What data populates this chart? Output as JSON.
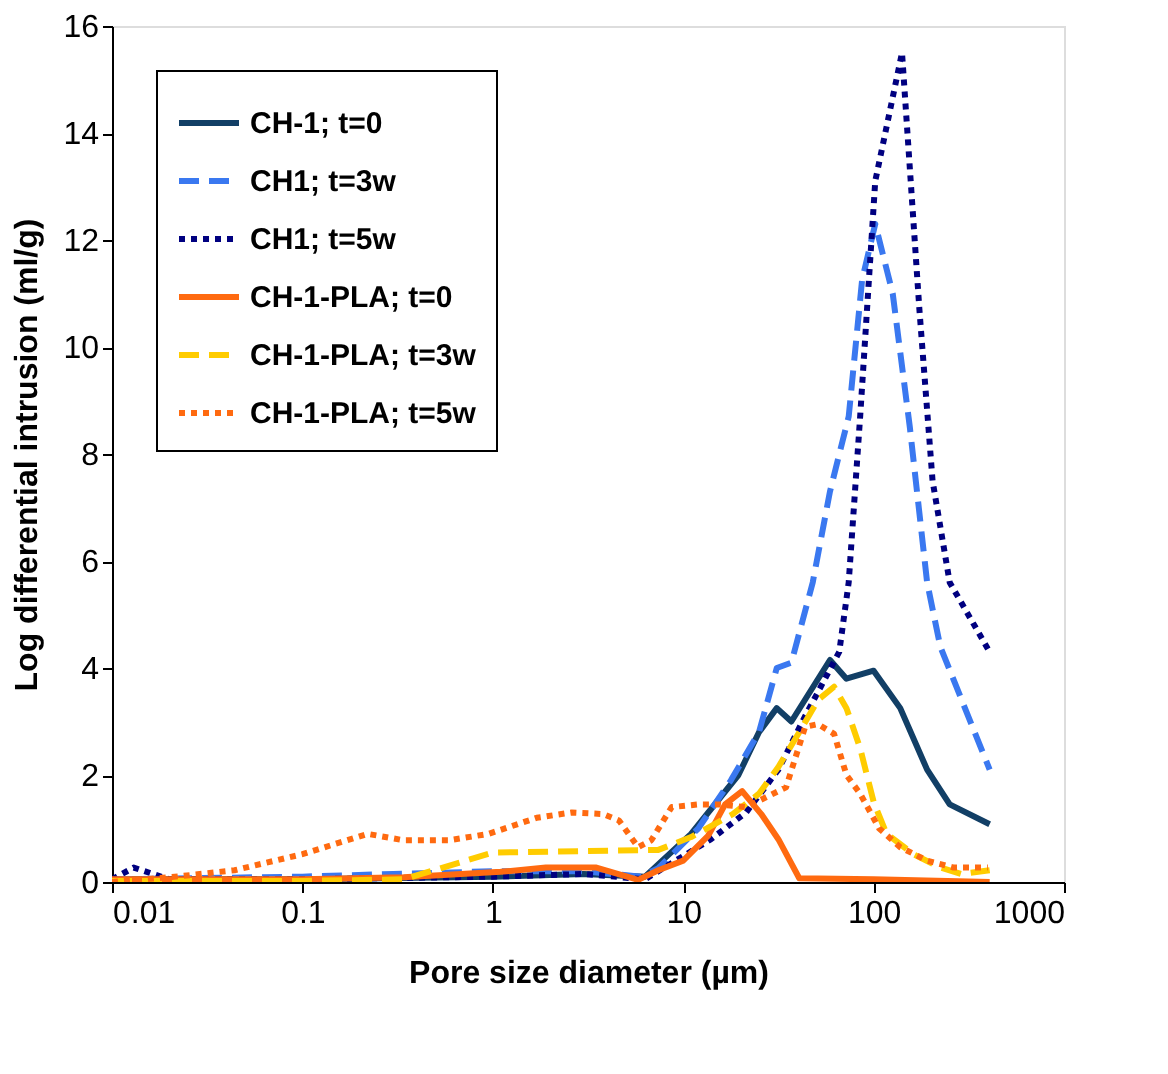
{
  "chart_data": {
    "type": "line",
    "xlabel": "Pore size diameter (µm)",
    "ylabel": "Log differential intrusion (ml/g)",
    "log": "x",
    "xlim": [
      0.01,
      1000
    ],
    "xticks": [
      0.01,
      0.1,
      1,
      10,
      100,
      1000
    ],
    "ylim": [
      0,
      16
    ],
    "yticks": [
      0,
      2,
      4,
      6,
      8,
      10,
      12,
      14,
      16
    ],
    "grid": false,
    "legend": "top left",
    "series": [
      {
        "name": "CH-1; t=0",
        "color": "#123f66",
        "line_style": "solid",
        "x": [
          0.01,
          0.1,
          1,
          3,
          6.3,
          11,
          19.5,
          25,
          31,
          37,
          59,
          72,
          100,
          138,
          191,
          251,
          407
        ],
        "values": [
          0.05,
          0.05,
          0.1,
          0.15,
          0.1,
          0.9,
          2.0,
          2.8,
          3.25,
          3.0,
          4.15,
          3.8,
          3.95,
          3.25,
          2.1,
          1.45,
          1.08
        ]
      },
      {
        "name": "CH1; t=3w",
        "color": "#3a78f0",
        "line_style": "dashed",
        "x": [
          0.01,
          0.1,
          0.3,
          1,
          3,
          6,
          7.4,
          12,
          17.8,
          25,
          31,
          37,
          47.9,
          59,
          74,
          87,
          102,
          126,
          155,
          191,
          224,
          407
        ],
        "values": [
          0.05,
          0.1,
          0.15,
          0.2,
          0.2,
          0.1,
          0.26,
          1.0,
          1.9,
          2.8,
          4.0,
          4.1,
          5.6,
          7.3,
          8.7,
          11.25,
          12.3,
          11.0,
          8.5,
          5.6,
          4.4,
          2.1
        ]
      },
      {
        "name": "CH1; t=5w",
        "color": "#000080",
        "line_style": "dotted",
        "x": [
          0.01,
          0.013,
          0.02,
          0.1,
          1,
          3,
          6.3,
          14,
          21.4,
          31.6,
          43.7,
          66,
          74,
          85,
          102,
          141,
          174,
          204,
          251,
          407
        ],
        "values": [
          0.05,
          0.27,
          0.05,
          0.05,
          0.1,
          0.15,
          0.05,
          0.8,
          1.3,
          2.1,
          3.1,
          4.3,
          5.6,
          8.7,
          13.1,
          15.5,
          10.7,
          7.5,
          5.6,
          4.3
        ]
      },
      {
        "name": "CH-1-PLA; t=0",
        "color": "#ff6a10",
        "line_style": "solid",
        "x": [
          0.01,
          0.1,
          0.34,
          1.1,
          1.9,
          3.5,
          5.8,
          7.4,
          10,
          13.5,
          16.6,
          20.4,
          25.7,
          31.6,
          40.7,
          100,
          407
        ],
        "values": [
          0.05,
          0.05,
          0.09,
          0.19,
          0.27,
          0.27,
          0.04,
          0.22,
          0.4,
          0.86,
          1.45,
          1.7,
          1.27,
          0.8,
          0.07,
          0.05,
          0.0
        ]
      },
      {
        "name": "CH-1-PLA; t=3w",
        "color": "#ffcc00",
        "line_style": "dashed",
        "x": [
          0.01,
          0.1,
          0.34,
          1,
          7.4,
          11,
          18.2,
          25,
          31.6,
          40.7,
          51,
          62,
          72,
          85,
          100,
          117,
          162,
          224,
          288,
          407
        ],
        "values": [
          0.02,
          0.02,
          0.05,
          0.55,
          0.6,
          0.84,
          1.27,
          1.65,
          2.15,
          2.8,
          3.4,
          3.65,
          3.25,
          2.5,
          1.5,
          0.9,
          0.52,
          0.27,
          0.15,
          0.22
        ]
      },
      {
        "name": "CH-1-PLA; t=5w",
        "color": "#ff6a10",
        "line_style": "dotted",
        "x": [
          0.01,
          0.023,
          0.044,
          0.1,
          0.22,
          0.34,
          0.59,
          0.95,
          1.7,
          2.6,
          3.8,
          4.6,
          5.8,
          6.8,
          8.7,
          12,
          15.5,
          21.4,
          34.7,
          43.7,
          51,
          62,
          72,
          85,
          107,
          138,
          191,
          263,
          398
        ],
        "values": [
          0.0,
          0.11,
          0.22,
          0.52,
          0.9,
          0.78,
          0.78,
          0.9,
          1.2,
          1.3,
          1.27,
          1.15,
          0.65,
          0.78,
          1.4,
          1.45,
          1.45,
          1.4,
          1.77,
          2.9,
          2.95,
          2.77,
          2.0,
          1.65,
          1.0,
          0.65,
          0.4,
          0.27,
          0.27
        ]
      }
    ]
  }
}
